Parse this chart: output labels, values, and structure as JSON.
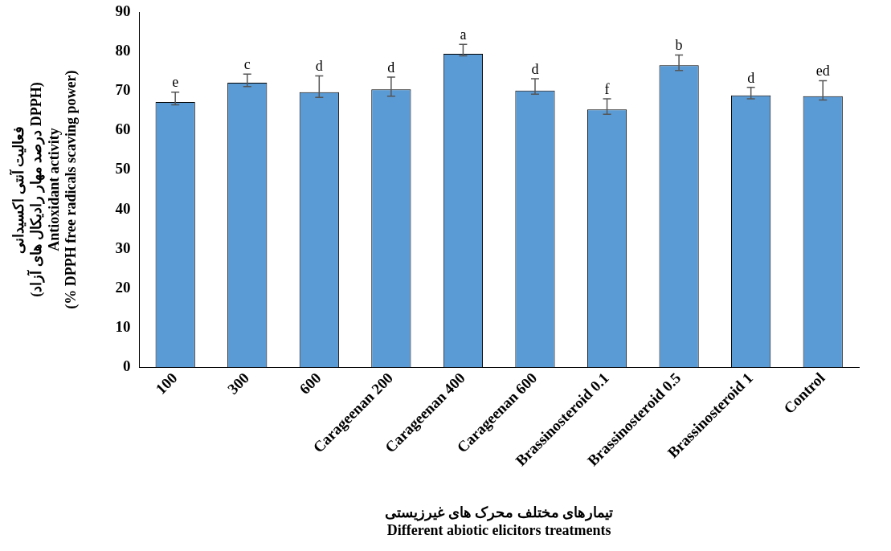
{
  "chart_data": {
    "type": "bar",
    "xlabel": "تیمارهای مختلف محرک های غیرزیستی\nDifferent abiotic elicitors treatments",
    "ylabel": "فعالیت آنتی اکسیدانی\n(درصد مهار رادیکال های آزاد DPPH)\nAntioxidant activity\n(% DPPH free radicals scaving power)",
    "categories": [
      "100",
      "300",
      "600",
      "Carageenan 200",
      "Carageenan 400",
      "Carageenan 600",
      "Brassinosteroid 0.1",
      "Brassinosteroid 0.5",
      "Brassinosteroid 1",
      "Control"
    ],
    "values": [
      67.2,
      72.1,
      69.7,
      70.4,
      79.4,
      70.1,
      65.3,
      76.5,
      68.9,
      68.7
    ],
    "errors": [
      [
        66.5,
        69.7
      ],
      [
        71.1,
        74.3
      ],
      [
        68.4,
        73.8
      ],
      [
        68.7,
        73.5
      ],
      [
        78.9,
        81.8
      ],
      [
        69.2,
        73.1
      ],
      [
        64.1,
        68.0
      ],
      [
        75.2,
        79.1
      ],
      [
        68.0,
        70.9
      ],
      [
        67.7,
        72.6
      ]
    ],
    "color": "#5b9bd5",
    "ylim": [
      0,
      90
    ],
    "yticks": [
      0,
      10,
      20,
      30,
      40,
      50,
      60,
      70,
      80,
      90
    ],
    "grid": false,
    "legend": false,
    "annotations": [
      {
        "text": "e",
        "x": "100",
        "y": 69.7
      },
      {
        "text": "c",
        "x": "300",
        "y": 74.3
      },
      {
        "text": "d",
        "x": "600",
        "y": 73.8
      },
      {
        "text": "d",
        "x": "Carageenan 200",
        "y": 73.5
      },
      {
        "text": "a",
        "x": "Carageenan 400",
        "y": 81.8
      },
      {
        "text": "d",
        "x": "Carageenan 600",
        "y": 73.1
      },
      {
        "text": "f",
        "x": "Brassinosteroid 0.1",
        "y": 68.0
      },
      {
        "text": "b",
        "x": "Brassinosteroid 0.5",
        "y": 79.1
      },
      {
        "text": "d",
        "x": "Brassinosteroid 1",
        "y": 70.9
      },
      {
        "text": "ed",
        "x": "Control",
        "y": 72.6
      }
    ]
  }
}
